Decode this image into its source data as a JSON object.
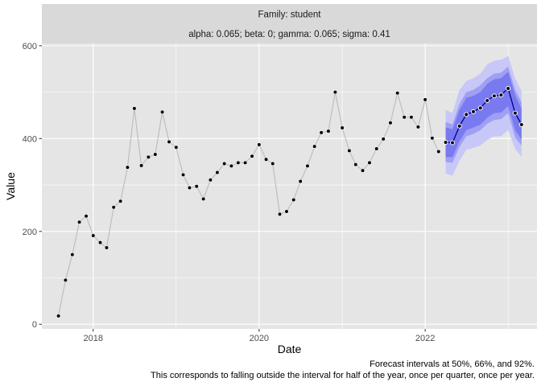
{
  "chart_data": {
    "type": "line",
    "facet_strips": [
      "Family: student",
      "alpha: 0.065; beta: 0; gamma: 0.065; sigma: 0.41"
    ],
    "xlabel": "Date",
    "ylabel": "Value",
    "x_ticks": [
      "2018",
      "2020",
      "2022"
    ],
    "y_ticks": [
      0,
      200,
      400,
      600
    ],
    "ylim": [
      -10,
      605
    ],
    "xlim": [
      "2017-05-20",
      "2023-05-08"
    ],
    "grid": true,
    "caption": [
      "Forecast intervals at 50%, 66%, and 92%.",
      "This corresponds to falling outside the interval for half of the year, once per quarter, once per year."
    ],
    "colors": {
      "panel": "#e5e5e5",
      "grid": "#ffffff",
      "strip": "#d9d9d9",
      "actual_line": "#bebebe",
      "forecast_line": "#00008b",
      "band_92": "#c8c8f8",
      "band_66": "#9f9ff4",
      "band_50": "#7a7af0"
    },
    "series": [
      {
        "kind": "actual",
        "x": [
          "2017-08-01",
          "2017-09-01",
          "2017-10-01",
          "2017-11-01",
          "2017-12-01",
          "2018-01-01",
          "2018-02-01",
          "2018-03-01",
          "2018-04-01",
          "2018-05-01",
          "2018-06-01",
          "2018-07-01",
          "2018-08-01",
          "2018-09-01",
          "2018-10-01",
          "2018-11-01",
          "2018-12-01",
          "2019-01-01",
          "2019-02-01",
          "2019-03-01",
          "2019-04-01",
          "2019-05-01",
          "2019-06-01",
          "2019-07-01",
          "2019-08-01",
          "2019-09-01",
          "2019-10-01",
          "2019-11-01",
          "2019-12-01",
          "2020-01-01",
          "2020-02-01",
          "2020-03-01",
          "2020-04-01",
          "2020-05-01",
          "2020-06-01",
          "2020-07-01",
          "2020-08-01",
          "2020-09-01",
          "2020-10-01",
          "2020-11-01",
          "2020-12-01",
          "2021-01-01",
          "2021-02-01",
          "2021-03-01",
          "2021-04-01",
          "2021-05-01",
          "2021-06-01",
          "2021-07-01",
          "2021-08-01",
          "2021-09-01",
          "2021-10-01",
          "2021-11-01",
          "2021-12-01",
          "2022-01-01",
          "2022-02-01",
          "2022-03-01"
        ],
        "values": [
          18,
          95,
          150,
          220,
          233,
          191,
          176,
          165,
          252,
          265,
          338,
          465,
          342,
          360,
          366,
          457,
          393,
          381,
          322,
          294,
          297,
          270,
          311,
          327,
          346,
          341,
          348,
          348,
          362,
          387,
          355,
          346,
          237,
          243,
          268,
          308,
          341,
          383,
          413,
          416,
          500,
          423,
          374,
          344,
          331,
          348,
          378,
          399,
          434,
          498,
          446,
          446,
          425,
          484,
          401,
          372
        ]
      },
      {
        "kind": "forecast",
        "x": [
          "2022-04-01",
          "2022-05-01",
          "2022-06-01",
          "2022-07-01",
          "2022-08-01",
          "2022-09-01",
          "2022-10-01",
          "2022-11-01",
          "2022-12-01",
          "2023-01-01",
          "2023-02-01",
          "2023-03-01"
        ],
        "values": [
          392,
          391,
          427,
          452,
          458,
          466,
          482,
          492,
          494,
          508,
          455,
          430
        ],
        "band_92_low": [
          325,
          320,
          352,
          376,
          380,
          385,
          397,
          405,
          405,
          418,
          378,
          360
        ],
        "band_92_high": [
          462,
          455,
          505,
          524,
          530,
          540,
          560,
          568,
          570,
          578,
          530,
          502
        ],
        "band_66_low": [
          350,
          348,
          382,
          405,
          410,
          418,
          432,
          440,
          442,
          455,
          402,
          385
        ],
        "band_66_high": [
          436,
          430,
          475,
          500,
          505,
          515,
          530,
          540,
          542,
          555,
          505,
          478
        ],
        "band_50_low": [
          360,
          360,
          394,
          418,
          424,
          430,
          445,
          455,
          456,
          470,
          418,
          398
        ],
        "band_50_high": [
          424,
          420,
          462,
          488,
          492,
          500,
          518,
          528,
          530,
          544,
          494,
          464
        ]
      }
    ]
  }
}
